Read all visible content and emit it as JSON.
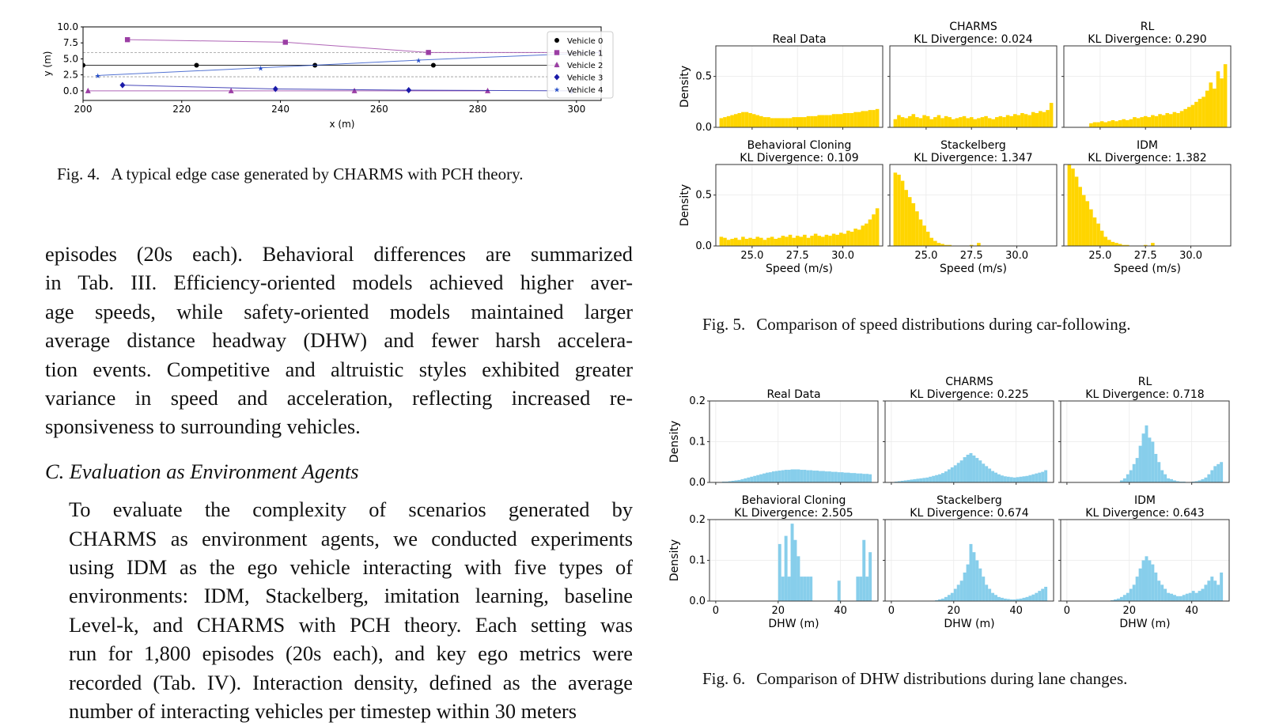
{
  "fig4": {
    "caption_label": "Fig. 4.",
    "caption_text": "A typical edge case generated by CHARMS with PCH theory.",
    "chart_data": {
      "type": "line",
      "xlabel": "x (m)",
      "ylabel": "y (m)",
      "xlim": [
        200,
        305
      ],
      "ylim": [
        -1.5,
        10
      ],
      "xticks": [
        200,
        220,
        240,
        260,
        280,
        300
      ],
      "yticks": [
        "0.0",
        "2.5",
        "5.0",
        "7.5",
        "10.0"
      ],
      "lane_lines": [
        2.2,
        6.0
      ],
      "grid": false,
      "legend_position": "right",
      "series": [
        {
          "name": "Vehicle 0",
          "color": "#000000",
          "marker": "circle",
          "x": [
            200,
            223,
            247,
            271,
            296
          ],
          "y": [
            4.0,
            4.0,
            4.0,
            4.0,
            4.0
          ]
        },
        {
          "name": "Vehicle 1",
          "color": "#9b3ea4",
          "marker": "square",
          "x": [
            209,
            241,
            270,
            305
          ],
          "y": [
            8.0,
            7.6,
            6.0,
            6.0
          ]
        },
        {
          "name": "Vehicle 2",
          "color": "#9b3ea4",
          "marker": "triangle",
          "x": [
            201,
            230,
            255,
            282
          ],
          "y": [
            0.0,
            0.0,
            0.0,
            0.0
          ]
        },
        {
          "name": "Vehicle 3",
          "color": "#1a1aa8",
          "marker": "diamond",
          "x": [
            208,
            239,
            266,
            299
          ],
          "y": [
            0.9,
            0.3,
            0.1,
            0.0
          ]
        },
        {
          "name": "Vehicle 4",
          "color": "#2850c8",
          "marker": "star",
          "x": [
            203,
            236,
            268,
            305
          ],
          "y": [
            2.4,
            3.6,
            4.8,
            6.0
          ]
        }
      ]
    }
  },
  "fig5": {
    "caption_label": "Fig. 5.",
    "caption_text": "Comparison of speed distributions during car-following.",
    "chart_data": {
      "type": "bar",
      "xlabel": "Speed (m/s)",
      "ylabel": "Density",
      "xlim": [
        23,
        32.2
      ],
      "ylim": [
        0,
        0.8
      ],
      "xticks": [
        25.0,
        27.5,
        30.0
      ],
      "xtick_labels": [
        "25.0",
        "27.5",
        "30.0"
      ],
      "yticks": [
        0.0,
        0.5
      ],
      "ytick_labels": [
        "0.0",
        "0.5"
      ],
      "color": "#ffd500",
      "bin_width": 0.2,
      "bin_start": 23.2,
      "panels": [
        {
          "name": "Real Data",
          "kl": "",
          "values": [
            0.09,
            0.1,
            0.11,
            0.12,
            0.13,
            0.14,
            0.15,
            0.15,
            0.14,
            0.13,
            0.12,
            0.11,
            0.1,
            0.1,
            0.09,
            0.09,
            0.09,
            0.09,
            0.09,
            0.09,
            0.1,
            0.1,
            0.1,
            0.1,
            0.11,
            0.11,
            0.11,
            0.12,
            0.12,
            0.12,
            0.12,
            0.13,
            0.13,
            0.13,
            0.14,
            0.14,
            0.14,
            0.15,
            0.15,
            0.16,
            0.16,
            0.17,
            0.17,
            0.18
          ]
        },
        {
          "name": "CHARMS",
          "kl": "KL Divergence: 0.024",
          "values": [
            0.08,
            0.12,
            0.1,
            0.09,
            0.11,
            0.13,
            0.1,
            0.09,
            0.12,
            0.11,
            0.08,
            0.1,
            0.12,
            0.09,
            0.11,
            0.1,
            0.08,
            0.09,
            0.1,
            0.11,
            0.09,
            0.1,
            0.08,
            0.09,
            0.1,
            0.11,
            0.09,
            0.08,
            0.1,
            0.11,
            0.1,
            0.12,
            0.11,
            0.13,
            0.12,
            0.14,
            0.13,
            0.12,
            0.15,
            0.14,
            0.16,
            0.15,
            0.17,
            0.24
          ]
        },
        {
          "name": "RL",
          "kl": "KL Divergence: 0.290",
          "values": [
            0,
            0,
            0,
            0,
            0,
            0,
            0.04,
            0.05,
            0.05,
            0.06,
            0.05,
            0.06,
            0.07,
            0.06,
            0.07,
            0.08,
            0.07,
            0.08,
            0.1,
            0.09,
            0.1,
            0.11,
            0.1,
            0.12,
            0.11,
            0.13,
            0.12,
            0.14,
            0.13,
            0.15,
            0.14,
            0.16,
            0.18,
            0.2,
            0.22,
            0.25,
            0.28,
            0.3,
            0.36,
            0.44,
            0.38,
            0.55,
            0.48,
            0.62
          ]
        },
        {
          "name": "Behavioral Cloning",
          "kl": "KL Divergence: 0.109",
          "values": [
            0.09,
            0.08,
            0.06,
            0.07,
            0.08,
            0.06,
            0.09,
            0.07,
            0.08,
            0.07,
            0.09,
            0.08,
            0.06,
            0.08,
            0.09,
            0.07,
            0.08,
            0.1,
            0.09,
            0.11,
            0.08,
            0.1,
            0.09,
            0.11,
            0.08,
            0.1,
            0.12,
            0.1,
            0.09,
            0.11,
            0.1,
            0.12,
            0.11,
            0.13,
            0.12,
            0.15,
            0.14,
            0.17,
            0.16,
            0.2,
            0.22,
            0.26,
            0.31,
            0.37
          ]
        },
        {
          "name": "Stackelberg",
          "kl": "KL Divergence: 1.347",
          "values": [
            0.72,
            0.7,
            0.64,
            0.55,
            0.48,
            0.42,
            0.34,
            0.26,
            0.2,
            0.14,
            0.08,
            0.05,
            0.03,
            0.02,
            0.01,
            0.01,
            0,
            0,
            0,
            0,
            0,
            0.01,
            0,
            0.03,
            0,
            0,
            0,
            0,
            0,
            0,
            0,
            0,
            0,
            0,
            0,
            0,
            0,
            0,
            0,
            0,
            0,
            0,
            0,
            0
          ]
        },
        {
          "name": "IDM",
          "kl": "KL Divergence: 1.382",
          "values": [
            0.8,
            0.76,
            0.68,
            0.58,
            0.5,
            0.44,
            0.36,
            0.28,
            0.22,
            0.15,
            0.09,
            0.06,
            0.04,
            0.03,
            0.02,
            0.01,
            0.01,
            0,
            0,
            0,
            0,
            0.01,
            0,
            0.03,
            0,
            0,
            0,
            0,
            0,
            0,
            0,
            0,
            0,
            0,
            0,
            0,
            0,
            0,
            0,
            0,
            0,
            0,
            0,
            0
          ]
        }
      ]
    }
  },
  "fig6": {
    "caption_label": "Fig. 6.",
    "caption_text": "Comparison of DHW distributions during lane changes.",
    "chart_data": {
      "type": "bar",
      "xlabel": "DHW (m)",
      "ylabel": "Density",
      "xlim": [
        -2,
        52
      ],
      "ylim": [
        0,
        0.2
      ],
      "xticks": [
        0,
        20,
        40
      ],
      "xtick_labels": [
        "0",
        "20",
        "40"
      ],
      "yticks": [
        0.0,
        0.1,
        0.2
      ],
      "ytick_labels": [
        "0.0",
        "0.1",
        "0.2"
      ],
      "color": "#87ceeb",
      "bin_width": 1,
      "bin_start": 0,
      "panels": [
        {
          "name": "Real Data",
          "kl": "",
          "values": [
            0.001,
            0.001,
            0.002,
            0.002,
            0.003,
            0.004,
            0.005,
            0.006,
            0.008,
            0.01,
            0.012,
            0.014,
            0.016,
            0.018,
            0.02,
            0.022,
            0.024,
            0.025,
            0.027,
            0.028,
            0.029,
            0.03,
            0.031,
            0.031,
            0.032,
            0.032,
            0.032,
            0.031,
            0.031,
            0.03,
            0.03,
            0.029,
            0.029,
            0.028,
            0.028,
            0.027,
            0.027,
            0.026,
            0.026,
            0.025,
            0.025,
            0.024,
            0.024,
            0.023,
            0.023,
            0.022,
            0.022,
            0.021,
            0.021,
            0.02
          ]
        },
        {
          "name": "CHARMS",
          "kl": "KL Divergence: 0.225",
          "values": [
            0,
            0.002,
            0.003,
            0.004,
            0.005,
            0.006,
            0.007,
            0.008,
            0.009,
            0.01,
            0.011,
            0.012,
            0.014,
            0.016,
            0.018,
            0.02,
            0.023,
            0.027,
            0.032,
            0.037,
            0.042,
            0.048,
            0.054,
            0.062,
            0.068,
            0.072,
            0.066,
            0.06,
            0.054,
            0.046,
            0.04,
            0.034,
            0.028,
            0.024,
            0.02,
            0.017,
            0.015,
            0.014,
            0.013,
            0.012,
            0.013,
            0.014,
            0.015,
            0.016,
            0.018,
            0.02,
            0.022,
            0.024,
            0.026,
            0.03
          ]
        },
        {
          "name": "RL",
          "kl": "KL Divergence: 0.718",
          "values": [
            0,
            0,
            0,
            0,
            0,
            0,
            0,
            0,
            0,
            0,
            0,
            0,
            0,
            0,
            0,
            0,
            0,
            0.005,
            0.01,
            0.02,
            0.03,
            0.045,
            0.06,
            0.09,
            0.12,
            0.14,
            0.11,
            0.1,
            0.07,
            0.05,
            0.03,
            0.02,
            0.01,
            0.008,
            0.005,
            0.003,
            0.002,
            0.002,
            0.001,
            0.001,
            0.002,
            0.003,
            0.005,
            0.008,
            0.012,
            0.02,
            0.03,
            0.04,
            0.045,
            0.05
          ]
        },
        {
          "name": "Behavioral Cloning",
          "kl": "KL Divergence: 2.505",
          "values": [
            0,
            0,
            0,
            0,
            0,
            0,
            0,
            0,
            0,
            0,
            0,
            0,
            0,
            0,
            0,
            0,
            0,
            0,
            0,
            0,
            0.14,
            0.06,
            0.16,
            0.06,
            0.19,
            0.15,
            0.11,
            0.06,
            0.06,
            0.06,
            0.06,
            0,
            0,
            0,
            0,
            0,
            0,
            0,
            0,
            0.05,
            0,
            0,
            0,
            0,
            0,
            0.06,
            0.06,
            0.15,
            0.06,
            0.12
          ]
        },
        {
          "name": "Stackelberg",
          "kl": "KL Divergence: 0.674",
          "values": [
            0,
            0,
            0,
            0,
            0,
            0,
            0,
            0,
            0,
            0,
            0,
            0,
            0,
            0,
            0.002,
            0.004,
            0.006,
            0.01,
            0.015,
            0.02,
            0.03,
            0.04,
            0.05,
            0.07,
            0.09,
            0.14,
            0.12,
            0.1,
            0.08,
            0.06,
            0.04,
            0.03,
            0.02,
            0.015,
            0.01,
            0.008,
            0.006,
            0.005,
            0.004,
            0.004,
            0.005,
            0.006,
            0.008,
            0.01,
            0.013,
            0.016,
            0.02,
            0.025,
            0.03,
            0.035
          ]
        },
        {
          "name": "IDM",
          "kl": "KL Divergence: 0.643",
          "values": [
            0,
            0,
            0,
            0,
            0,
            0,
            0,
            0,
            0,
            0,
            0,
            0,
            0,
            0,
            0.002,
            0.004,
            0.006,
            0.01,
            0.015,
            0.02,
            0.03,
            0.04,
            0.06,
            0.08,
            0.1,
            0.11,
            0.1,
            0.09,
            0.07,
            0.05,
            0.04,
            0.03,
            0.02,
            0.018,
            0.015,
            0.012,
            0.012,
            0.015,
            0.018,
            0.02,
            0.025,
            0.02,
            0.025,
            0.03,
            0.04,
            0.05,
            0.06,
            0.05,
            0.04,
            0.07
          ]
        }
      ]
    }
  },
  "text": {
    "para1_lines": [
      "episodes (20s each). Behavioral differences are summarized",
      "in Tab. III. Efficiency-oriented models achieved higher aver-",
      "age speeds, while safety-oriented models maintained larger",
      "average distance headway (DHW) and fewer harsh accelera-",
      "tion events. Competitive and altruistic styles exhibited greater",
      "variance in speed and acceleration, reflecting increased re-",
      "sponsiveness to surrounding vehicles."
    ],
    "section_heading": "C. Evaluation as Environment Agents",
    "para2_lines": [
      "To evaluate the complexity of scenarios generated by",
      "CHARMS as environment agents, we conducted experiments",
      "using IDM as the ego vehicle interacting with five types of",
      "environments: IDM, Stackelberg, imitation learning, baseline",
      "Level-k, and CHARMS with PCH theory. Each setting was",
      "run for 1,800 episodes (20s each), and key ego metrics were",
      "recorded (Tab. IV). Interaction density, defined as the average",
      "number of interacting vehicles per timestep within 30 meters"
    ]
  }
}
